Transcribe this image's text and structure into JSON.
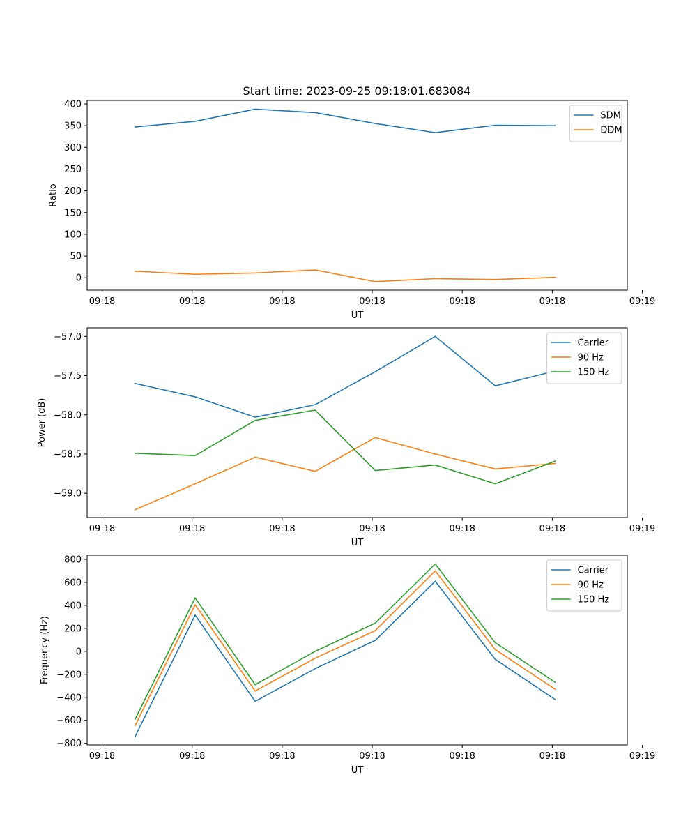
{
  "figure_title": "Start time: 2023-09-25 09:18:01.683084",
  "series_colors": {
    "blue": "#1f77b4",
    "orange": "#ff7f0e",
    "green": "#2ca02c"
  },
  "chart_data": [
    {
      "type": "line",
      "title": "Start time: 2023-09-25 09:18:01.683084",
      "xlabel": "UT",
      "ylabel": "Ratio",
      "x": [
        1,
        2,
        3,
        4,
        5,
        6,
        7,
        8
      ],
      "xlim": [
        0.2,
        9.2
      ],
      "xticks": [
        0.45,
        1.95,
        3.45,
        4.95,
        6.45,
        7.95,
        9.45
      ],
      "xtick_labels": [
        "09:18",
        "09:18",
        "09:18",
        "09:18",
        "09:18",
        "09:18",
        "09:19"
      ],
      "ylim": [
        -28.5,
        408
      ],
      "yticks": [
        0,
        50,
        100,
        150,
        200,
        250,
        300,
        350,
        400
      ],
      "ytick_labels": [
        "0",
        "50",
        "100",
        "150",
        "200",
        "250",
        "300",
        "350",
        "400"
      ],
      "legend_position": "top-right",
      "series": [
        {
          "name": "SDM",
          "color": "#1f77b4",
          "values": [
            347,
            360,
            388,
            380,
            355,
            334,
            351,
            350
          ]
        },
        {
          "name": "DDM",
          "color": "#ff7f0e",
          "values": [
            15,
            8,
            11,
            18,
            -9,
            -2,
            -4,
            1
          ]
        }
      ]
    },
    {
      "type": "line",
      "title": "",
      "xlabel": "UT",
      "ylabel": "Power (dB)",
      "x": [
        1,
        2,
        3,
        4,
        5,
        6,
        7,
        8
      ],
      "xlim": [
        0.2,
        9.2
      ],
      "xticks": [
        0.45,
        1.95,
        3.45,
        4.95,
        6.45,
        7.95,
        9.45
      ],
      "xtick_labels": [
        "09:18",
        "09:18",
        "09:18",
        "09:18",
        "09:18",
        "09:18",
        "09:19"
      ],
      "ylim": [
        -59.31,
        -56.89
      ],
      "yticks": [
        -59.0,
        -58.5,
        -58.0,
        -57.5,
        -57.0
      ],
      "ytick_labels": [
        "−59.0",
        "−58.5",
        "−58.0",
        "−57.5",
        "−57.0"
      ],
      "legend_position": "top-right",
      "series": [
        {
          "name": "Carrier",
          "color": "#1f77b4",
          "values": [
            -57.6,
            -57.77,
            -58.03,
            -57.87,
            -57.45,
            -57.0,
            -57.63,
            -57.44
          ]
        },
        {
          "name": "90 Hz",
          "color": "#ff7f0e",
          "values": [
            -59.21,
            -58.88,
            -58.54,
            -58.72,
            -58.29,
            -58.5,
            -58.69,
            -58.62
          ]
        },
        {
          "name": "150 Hz",
          "color": "#2ca02c",
          "values": [
            -58.49,
            -58.52,
            -58.07,
            -57.94,
            -58.71,
            -58.64,
            -58.88,
            -58.59
          ]
        }
      ]
    },
    {
      "type": "line",
      "title": "",
      "xlabel": "UT",
      "ylabel": "Frequency (Hz)",
      "x": [
        1,
        2,
        3,
        4,
        5,
        6,
        7,
        8
      ],
      "xlim": [
        0.2,
        9.2
      ],
      "xticks": [
        0.45,
        1.95,
        3.45,
        4.95,
        6.45,
        7.95,
        9.45
      ],
      "xtick_labels": [
        "09:18",
        "09:18",
        "09:18",
        "09:18",
        "09:18",
        "09:18",
        "09:19"
      ],
      "ylim": [
        -814,
        836
      ],
      "yticks": [
        -800,
        -600,
        -400,
        -200,
        0,
        200,
        400,
        600,
        800
      ],
      "ytick_labels": [
        "−800",
        "−600",
        "−400",
        "−200",
        "0",
        "200",
        "400",
        "600",
        "800"
      ],
      "legend_position": "top-right",
      "series": [
        {
          "name": "Carrier",
          "color": "#1f77b4",
          "values": [
            -740,
            315,
            -435,
            -150,
            95,
            610,
            -70,
            -420
          ]
        },
        {
          "name": "90 Hz",
          "color": "#ff7f0e",
          "values": [
            -645,
            405,
            -345,
            -60,
            180,
            700,
            15,
            -330
          ]
        },
        {
          "name": "150 Hz",
          "color": "#2ca02c",
          "values": [
            -590,
            465,
            -290,
            0,
            245,
            760,
            75,
            -270
          ]
        }
      ]
    }
  ]
}
